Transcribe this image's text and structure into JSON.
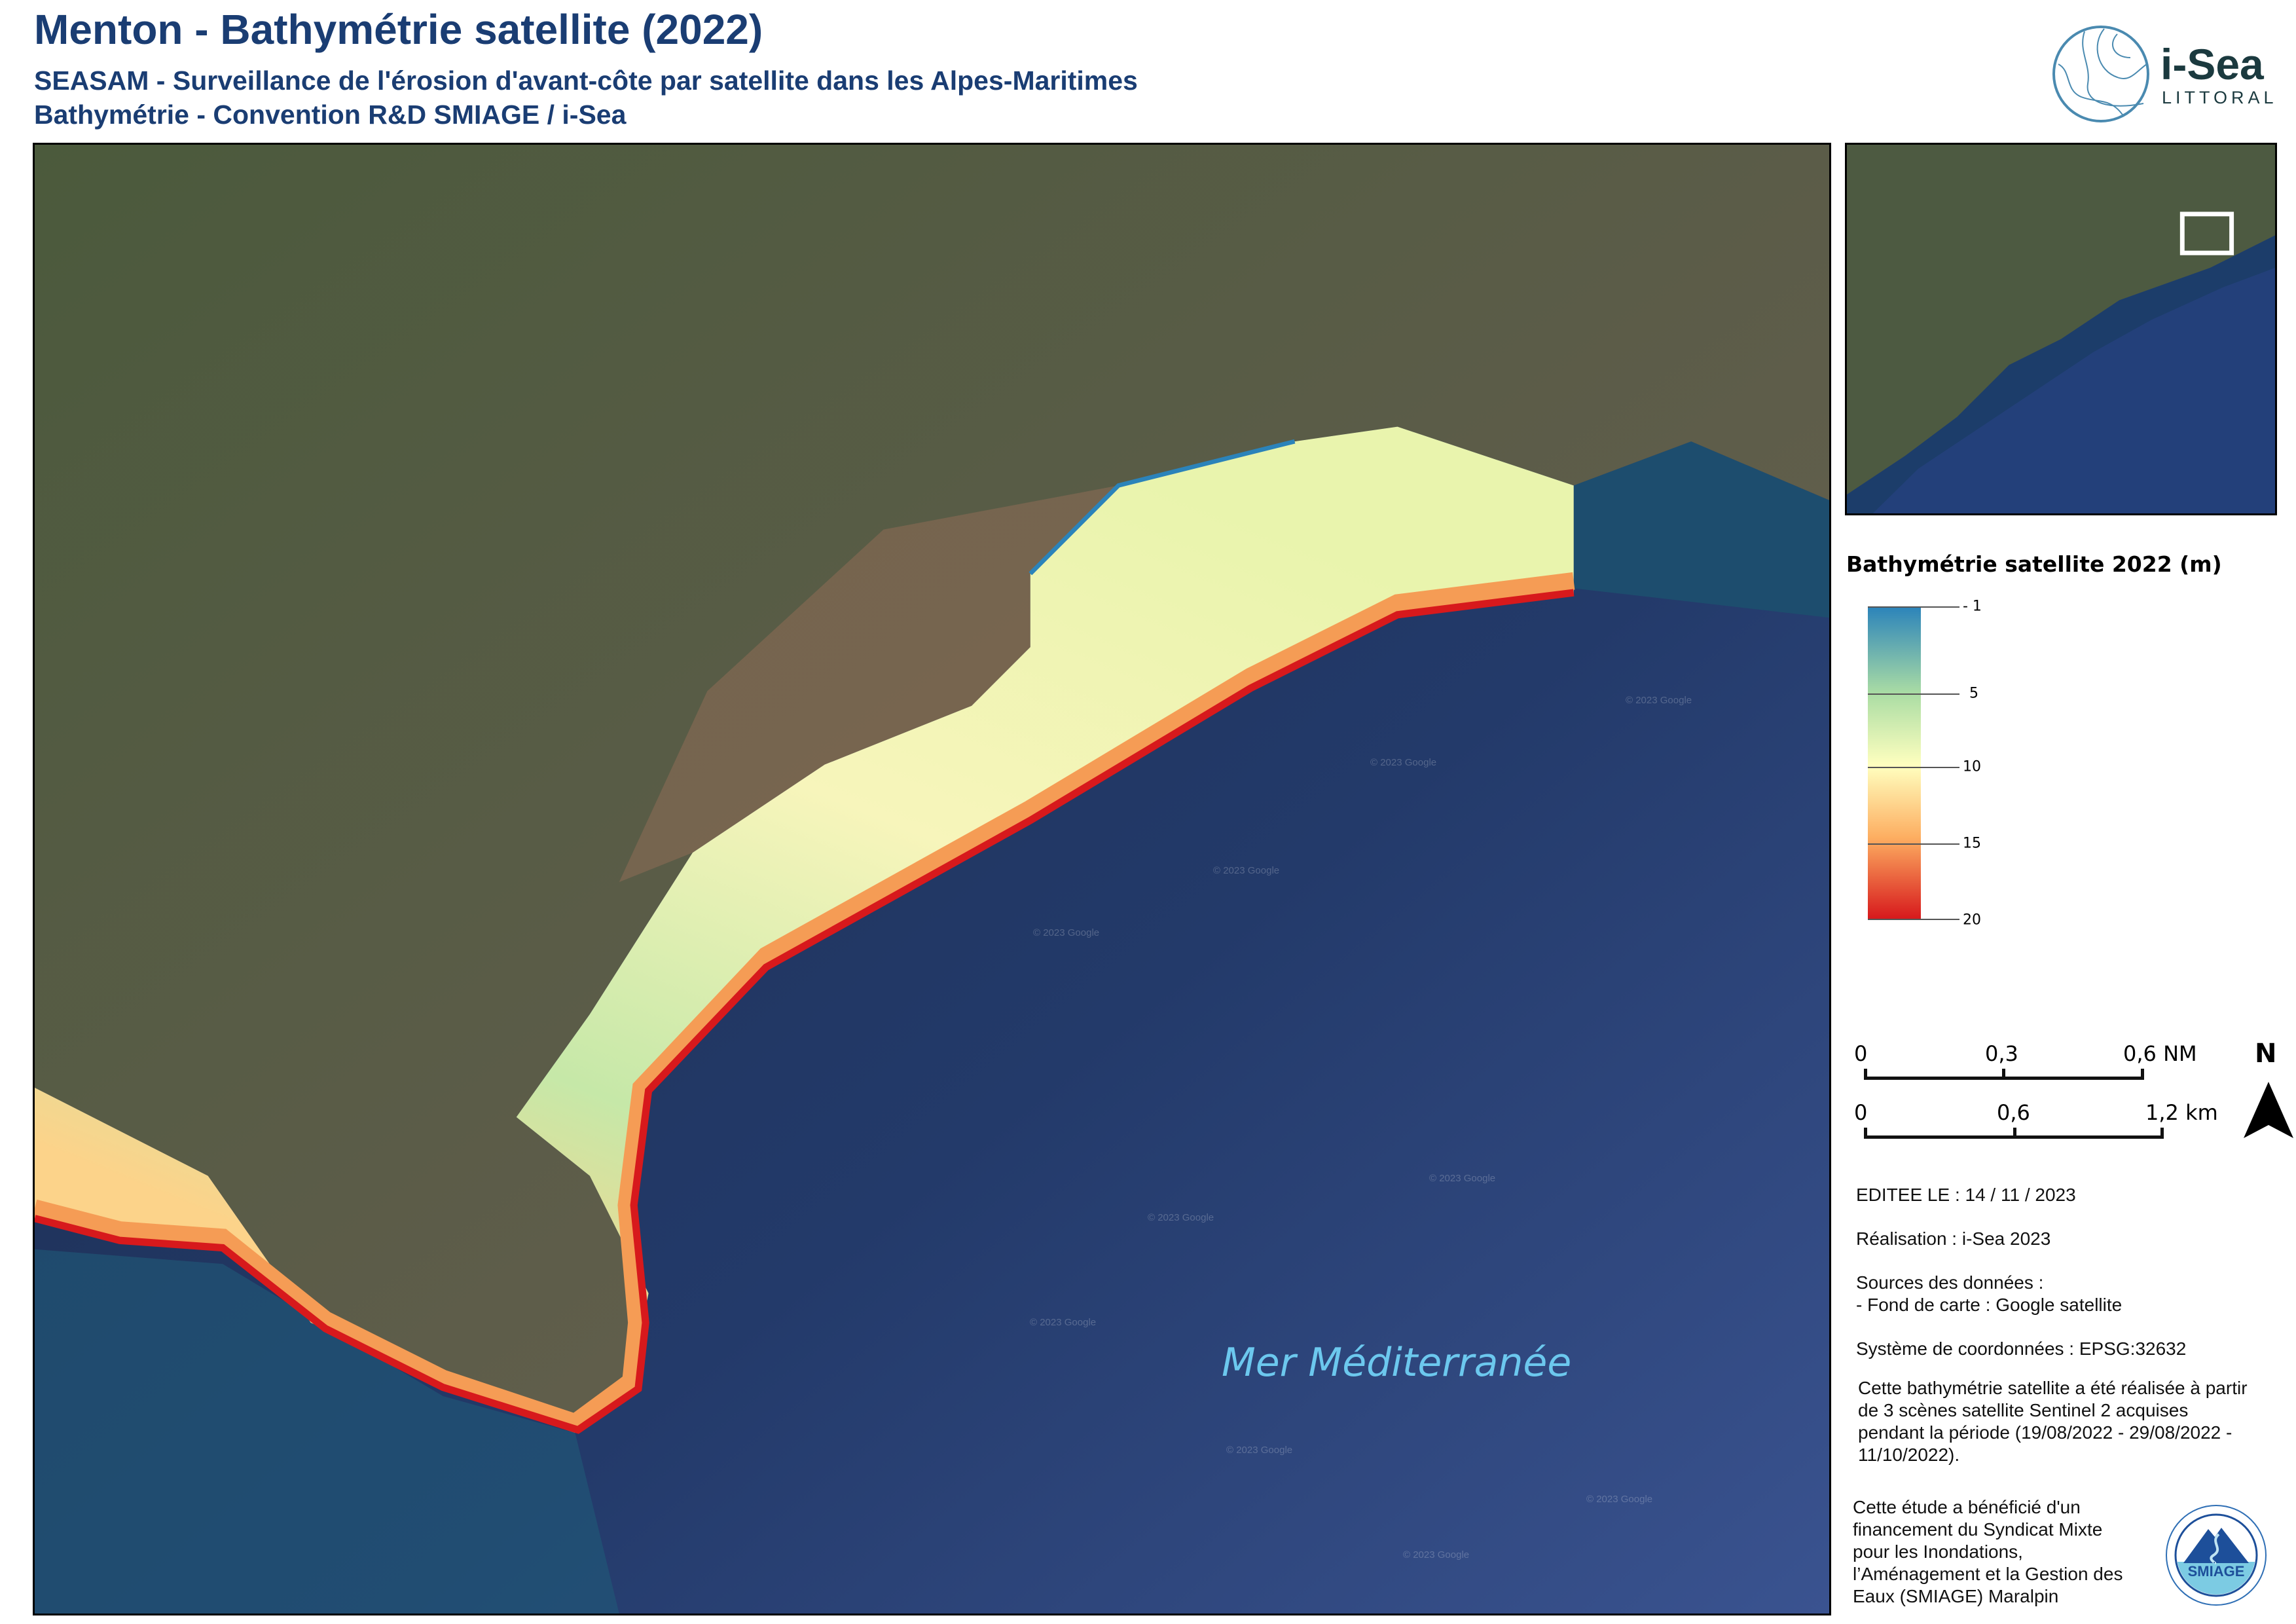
{
  "header": {
    "title": "Menton - Bathymétrie satellite (2022)",
    "subtitle_1": "SEASAM - Surveillance de l'érosion d'avant-côte par satellite dans les Alpes-Maritimes",
    "subtitle_2": "Bathymétrie - Convention R&D SMIAGE / i-Sea"
  },
  "logo_isea": {
    "name": "i-Sea",
    "tagline": "LITTORAL",
    "color": "#4a8ab0"
  },
  "map": {
    "sea_label": "Mer Méditerranée",
    "watermark": "© 2023 Google"
  },
  "legend": {
    "title": "Bathymétrie satellite 2022 (m)",
    "ticks": [
      "- 1",
      "5",
      "10",
      "15",
      "20"
    ],
    "depth_values": [
      -1,
      5,
      10,
      15,
      20
    ],
    "colors": [
      "#2b83ba",
      "#abdda4",
      "#ffffbf",
      "#fdae61",
      "#d7191c"
    ]
  },
  "scale_bar": {
    "nm": {
      "labels": [
        "0",
        "0,3",
        "0,6 NM"
      ]
    },
    "km": {
      "labels": [
        "0",
        "0,6",
        "1,2 km"
      ]
    }
  },
  "north_arrow": {
    "label": "N"
  },
  "info": {
    "edited": "EDITEE LE : 14 / 11 / 2023",
    "realisation": "Réalisation : i-Sea 2023",
    "sources_title": "Sources des données :",
    "sources_basemap": "- Fond de carte  : Google satellite",
    "crs": "Système de coordonnées : EPSG:32632",
    "method": [
      "Cette bathymétrie satellite a été réalisée à partir",
      "de 3 scènes satellite Sentinel 2 acquises",
      "pendant la période (19/08/2022 - 29/08/2022 -",
      "11/10/2022)."
    ],
    "funding": [
      "Cette étude a bénéficié d'un",
      "financement du Syndicat Mixte",
      "pour les Inondations,",
      "l’Aménagement et la Gestion des",
      "Eaux (SMIAGE) Maralpin"
    ]
  },
  "logo_smiage": {
    "name": "SMIAGE",
    "ring_text": "SYNDICAT MIXTE INONDATIONS, AMÉNAGEMENT ET GESTION DE L'EAU MARALPIN"
  }
}
